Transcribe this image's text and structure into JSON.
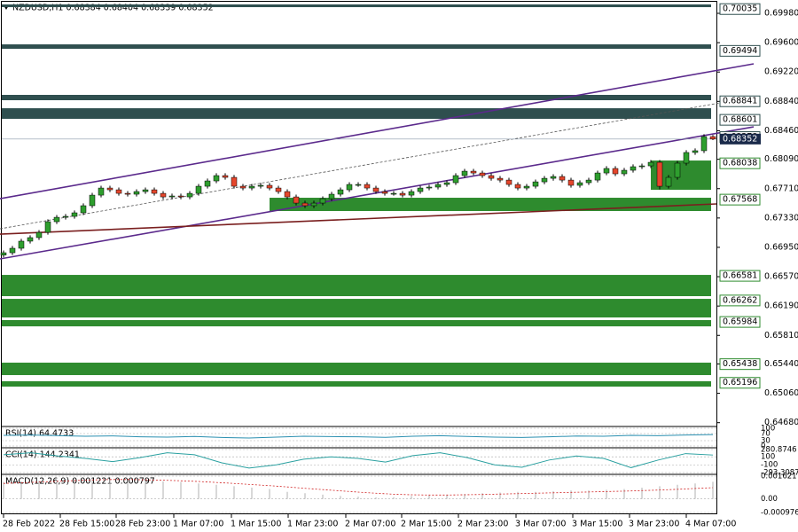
{
  "chart_data": {
    "type": "candlestick",
    "title": "NZDUSD,H1  0.68384 0.68404 0.68339 0.68352",
    "ylim": [
      0.64642,
      0.70118
    ],
    "yticks": [
      {
        "value": 0.6998,
        "label": "0.69980"
      },
      {
        "value": 0.696,
        "label": "0.69600"
      },
      {
        "value": 0.6922,
        "label": "0.69220"
      },
      {
        "value": 0.6884,
        "label": "0.68840"
      },
      {
        "value": 0.6846,
        "label": "0.68460"
      },
      {
        "value": 0.6809,
        "label": "0.68090"
      },
      {
        "value": 0.6771,
        "label": "0.67710"
      },
      {
        "value": 0.6733,
        "label": "0.67330"
      },
      {
        "value": 0.6695,
        "label": "0.66950"
      },
      {
        "value": 0.6657,
        "label": "0.66570"
      },
      {
        "value": 0.6619,
        "label": "0.66190"
      },
      {
        "value": 0.6581,
        "label": "0.65810"
      },
      {
        "value": 0.6544,
        "label": "0.65440"
      },
      {
        "value": 0.6506,
        "label": "0.65060"
      },
      {
        "value": 0.6468,
        "label": "0.64680"
      }
    ],
    "xticks": [
      {
        "value": 0,
        "label": "28 Feb 2022"
      },
      {
        "value": 6.4,
        "label": "28 Feb 15:00"
      },
      {
        "value": 12.7,
        "label": "28 Feb 23:00"
      },
      {
        "value": 19.2,
        "label": "1 Mar 07:00"
      },
      {
        "value": 25.7,
        "label": "1 Mar 15:00"
      },
      {
        "value": 32.1,
        "label": "1 Mar 23:00"
      },
      {
        "value": 38.6,
        "label": "2 Mar 07:00"
      },
      {
        "value": 44.9,
        "label": "2 Mar 15:00"
      },
      {
        "value": 51.3,
        "label": "2 Mar 23:00"
      },
      {
        "value": 57.8,
        "label": "3 Mar 07:00"
      },
      {
        "value": 64.2,
        "label": "3 Mar 15:00"
      },
      {
        "value": 70.6,
        "label": "3 Mar 23:00"
      },
      {
        "value": 77.0,
        "label": "4 Mar 07:00"
      }
    ],
    "up_color": "#2e9e2e",
    "down_color": "#e5462c",
    "current": 0.68352,
    "ohlc": [
      [
        0.6685,
        0.6691,
        0.6682,
        0.6688
      ],
      [
        0.6688,
        0.66968,
        0.6685,
        0.66938
      ],
      [
        0.66938,
        0.6706,
        0.66908,
        0.6703
      ],
      [
        0.6703,
        0.67106,
        0.67,
        0.67076
      ],
      [
        0.67076,
        0.67174,
        0.67046,
        0.67144
      ],
      [
        0.67144,
        0.67312,
        0.67114,
        0.67282
      ],
      [
        0.67282,
        0.67369,
        0.67252,
        0.67339
      ],
      [
        0.67339,
        0.67381,
        0.67309,
        0.67351
      ],
      [
        0.67351,
        0.67427,
        0.67321,
        0.67397
      ],
      [
        0.67397,
        0.67519,
        0.67367,
        0.67489
      ],
      [
        0.67489,
        0.67656,
        0.67459,
        0.67626
      ],
      [
        0.67626,
        0.67748,
        0.67596,
        0.67718
      ],
      [
        0.67718,
        0.67748,
        0.67665,
        0.67695
      ],
      [
        0.67695,
        0.67725,
        0.67619,
        0.67649
      ],
      [
        0.67649,
        0.67679,
        0.67608,
        0.67638
      ],
      [
        0.67638,
        0.67702,
        0.67608,
        0.67672
      ],
      [
        0.67672,
        0.67725,
        0.67642,
        0.67695
      ],
      [
        0.67695,
        0.67725,
        0.67619,
        0.67649
      ],
      [
        0.67649,
        0.67679,
        0.67573,
        0.67603
      ],
      [
        0.67603,
        0.67645,
        0.67573,
        0.67615
      ],
      [
        0.67615,
        0.67645,
        0.67573,
        0.67603
      ],
      [
        0.67603,
        0.67679,
        0.67573,
        0.67649
      ],
      [
        0.67649,
        0.67771,
        0.67619,
        0.67741
      ],
      [
        0.67741,
        0.6784,
        0.67711,
        0.6781
      ],
      [
        0.6781,
        0.67909,
        0.6778,
        0.67879
      ],
      [
        0.67879,
        0.67909,
        0.67826,
        0.67856
      ],
      [
        0.67856,
        0.67886,
        0.67711,
        0.67741
      ],
      [
        0.67741,
        0.67771,
        0.67688,
        0.67718
      ],
      [
        0.67718,
        0.67771,
        0.67688,
        0.67741
      ],
      [
        0.67741,
        0.67783,
        0.67711,
        0.67753
      ],
      [
        0.67753,
        0.67783,
        0.67688,
        0.67718
      ],
      [
        0.67718,
        0.67748,
        0.67642,
        0.67672
      ],
      [
        0.67672,
        0.67702,
        0.67573,
        0.67603
      ],
      [
        0.67603,
        0.67633,
        0.67493,
        0.67523
      ],
      [
        0.67523,
        0.67553,
        0.67459,
        0.67489
      ],
      [
        0.67489,
        0.67553,
        0.67459,
        0.67523
      ],
      [
        0.67523,
        0.6761,
        0.67493,
        0.6758
      ],
      [
        0.6758,
        0.67668,
        0.6755,
        0.67638
      ],
      [
        0.67638,
        0.67725,
        0.67608,
        0.67695
      ],
      [
        0.67695,
        0.67794,
        0.67665,
        0.67764
      ],
      [
        0.67764,
        0.67794,
        0.67734,
        0.67764
      ],
      [
        0.67764,
        0.67794,
        0.67688,
        0.67718
      ],
      [
        0.67718,
        0.67748,
        0.67642,
        0.67672
      ],
      [
        0.67672,
        0.67702,
        0.67619,
        0.67649
      ],
      [
        0.67649,
        0.67679,
        0.67619,
        0.67649
      ],
      [
        0.67649,
        0.67679,
        0.67596,
        0.67626
      ],
      [
        0.67626,
        0.67702,
        0.67596,
        0.67672
      ],
      [
        0.67672,
        0.67748,
        0.67642,
        0.67718
      ],
      [
        0.67718,
        0.6776,
        0.67688,
        0.6773
      ],
      [
        0.6773,
        0.67794,
        0.677,
        0.67764
      ],
      [
        0.67764,
        0.67817,
        0.67734,
        0.67787
      ],
      [
        0.67787,
        0.67909,
        0.67757,
        0.67879
      ],
      [
        0.67879,
        0.67966,
        0.67849,
        0.67936
      ],
      [
        0.67936,
        0.67966,
        0.67883,
        0.67913
      ],
      [
        0.67913,
        0.67943,
        0.67849,
        0.67879
      ],
      [
        0.67879,
        0.67909,
        0.67814,
        0.67844
      ],
      [
        0.67844,
        0.67874,
        0.67791,
        0.67821
      ],
      [
        0.67821,
        0.67851,
        0.67734,
        0.67764
      ],
      [
        0.67764,
        0.67794,
        0.67688,
        0.67718
      ],
      [
        0.67718,
        0.67771,
        0.67688,
        0.67741
      ],
      [
        0.67741,
        0.67828,
        0.67711,
        0.67798
      ],
      [
        0.67798,
        0.67874,
        0.67768,
        0.67844
      ],
      [
        0.67844,
        0.67897,
        0.67814,
        0.67867
      ],
      [
        0.67867,
        0.67897,
        0.67791,
        0.67821
      ],
      [
        0.67821,
        0.67851,
        0.67723,
        0.67753
      ],
      [
        0.67753,
        0.67817,
        0.67723,
        0.67787
      ],
      [
        0.67787,
        0.67851,
        0.67757,
        0.67821
      ],
      [
        0.67821,
        0.67943,
        0.67791,
        0.67913
      ],
      [
        0.67913,
        0.68001,
        0.67883,
        0.67971
      ],
      [
        0.67971,
        0.68001,
        0.67872,
        0.67902
      ],
      [
        0.67902,
        0.67978,
        0.67872,
        0.67948
      ],
      [
        0.67948,
        0.68024,
        0.67918,
        0.67994
      ],
      [
        0.67994,
        0.68035,
        0.67964,
        0.68005
      ],
      [
        0.68005,
        0.68081,
        0.67975,
        0.68051
      ],
      [
        0.68051,
        0.68081,
        0.677,
        0.67741
      ],
      [
        0.67741,
        0.67886,
        0.67711,
        0.67856
      ],
      [
        0.67856,
        0.6807,
        0.67826,
        0.6804
      ],
      [
        0.6804,
        0.68208,
        0.6801,
        0.68178
      ],
      [
        0.68178,
        0.68231,
        0.68148,
        0.68201
      ],
      [
        0.68201,
        0.68414,
        0.68171,
        0.68384
      ],
      [
        0.68384,
        0.68404,
        0.68339,
        0.68352
      ]
    ],
    "levels": [
      {
        "value": 0.70035,
        "top": 0.70095,
        "bottom": 0.7006,
        "start": -0.5,
        "color": "#2f4f4f"
      },
      {
        "value": 0.69494,
        "top": 0.69578,
        "bottom": 0.69521,
        "start": -0.5,
        "color": "#2f4f4f"
      },
      {
        "value": 0.68841,
        "top": 0.68924,
        "bottom": 0.68855,
        "start": -0.5,
        "color": "#2f4f4f"
      },
      {
        "value": 0.68601,
        "top": 0.68751,
        "bottom": 0.68614,
        "start": -0.5,
        "color": "#2f4f4f"
      },
      {
        "value": 0.68378,
        "color": "#2f4f4f"
      },
      {
        "value": 0.68038,
        "top": 0.68074,
        "bottom": 0.67695,
        "start": 73,
        "color": "#2e8b2e"
      },
      {
        "value": 0.67568,
        "top": 0.67592,
        "bottom": 0.6742,
        "start": 30,
        "color": "#2e8b2e"
      },
      {
        "value": 0.66581,
        "top": 0.66593,
        "bottom": 0.66318,
        "start": -0.5,
        "color": "#2e8b2e"
      },
      {
        "value": 0.66262,
        "top": 0.66283,
        "bottom": 0.66042,
        "start": -0.5,
        "color": "#2e8b2e"
      },
      {
        "value": 0.65984,
        "top": 0.66008,
        "bottom": 0.65927,
        "start": -0.5,
        "color": "#2e8b2e"
      },
      {
        "value": 0.65438,
        "top": 0.65457,
        "bottom": 0.65296,
        "start": -0.5,
        "color": "#2e8b2e"
      },
      {
        "value": 0.65196,
        "top": 0.65216,
        "bottom": 0.65147,
        "start": -0.5,
        "color": "#2e8b2e"
      }
    ],
    "trendlines": [
      {
        "from": [
          -0.4,
          0.6758
        ],
        "to": [
          84.6,
          0.69326
        ],
        "color": "#5b2a8c",
        "dash": false
      },
      {
        "from": [
          -0.4,
          0.668
        ],
        "to": [
          84.6,
          0.6851
        ],
        "color": "#5b2a8c",
        "dash": false
      },
      {
        "from": [
          -0.4,
          0.6719
        ],
        "to": [
          80.8,
          0.6882
        ],
        "color": "#555555",
        "dash": true
      },
      {
        "from": [
          -0.4,
          0.67121
        ],
        "to": [
          80.4,
          0.67512
        ],
        "color": "#7a1f1f",
        "dash": false
      }
    ],
    "indicators": [
      {
        "type": "line",
        "title": "RSI(14) 64.4733",
        "ylim": [
          0,
          100
        ],
        "yticks": [
          100,
          70,
          30,
          0
        ],
        "color": "#2a8fb0",
        "values": [
          60,
          62,
          58,
          55,
          57,
          52,
          50,
          54,
          48,
          45,
          50,
          55,
          53,
          52,
          49,
          55,
          58,
          54,
          50,
          48,
          52,
          56,
          55,
          60,
          58,
          62,
          64.4733
        ]
      },
      {
        "type": "line",
        "title": "CCI(14) 144.2341",
        "ylim": [
          -293.3087,
          280.8746
        ],
        "yticks": [
          280.8746,
          100,
          -100,
          -293.3087
        ],
        "color": "#2aa0a0",
        "values": [
          150,
          200,
          120,
          60,
          -20,
          80,
          200,
          150,
          -50,
          -180,
          -100,
          40,
          100,
          60,
          -30,
          130,
          200,
          80,
          -100,
          -160,
          20,
          120,
          60,
          -170,
          20,
          180,
          144.2341
        ]
      },
      {
        "type": "macd",
        "title": "MACD(12,26,9) 0.001221 0.000797",
        "ylim": [
          -0.000976,
          0.001621
        ],
        "yticks": [
          0.001621,
          {
            "value": 0,
            "label": "0.00"
          },
          -0.000976
        ],
        "color": "#b0b0b0",
        "signal_color": "#d02020",
        "values": [
          0.0012,
          0.00125,
          0.0013,
          0.00135,
          0.0014,
          0.00142,
          0.0014,
          0.00135,
          0.0013,
          0.00125,
          0.0012,
          0.0011,
          0.001,
          0.0009,
          0.0008,
          0.0007,
          0.0005,
          0.0004,
          0.0003,
          0.0002,
          0.00015,
          0.0001,
          0.00012,
          0.0002,
          0.00025,
          0.0003,
          0.00035,
          0.0004,
          0.00045,
          0.0005,
          0.0005,
          0.00055,
          0.0006,
          0.0006,
          0.00065,
          0.0007,
          0.0008,
          0.0009,
          0.001,
          0.0011,
          0.001221
        ],
        "signal": [
          0.0011,
          0.00115,
          0.0012,
          0.00125,
          0.0013,
          0.00135,
          0.00138,
          0.00138,
          0.00136,
          0.00133,
          0.00129,
          0.00124,
          0.00117,
          0.0011,
          0.00102,
          0.00094,
          0.00085,
          0.00075,
          0.00066,
          0.00057,
          0.00048,
          0.0004,
          0.00033,
          0.00029,
          0.00027,
          0.00027,
          0.00029,
          0.00031,
          0.00034,
          0.00037,
          0.0004,
          0.00043,
          0.00046,
          0.00049,
          0.00052,
          0.00055,
          0.00059,
          0.00063,
          0.00068,
          0.00074,
          0.000797
        ]
      }
    ]
  }
}
